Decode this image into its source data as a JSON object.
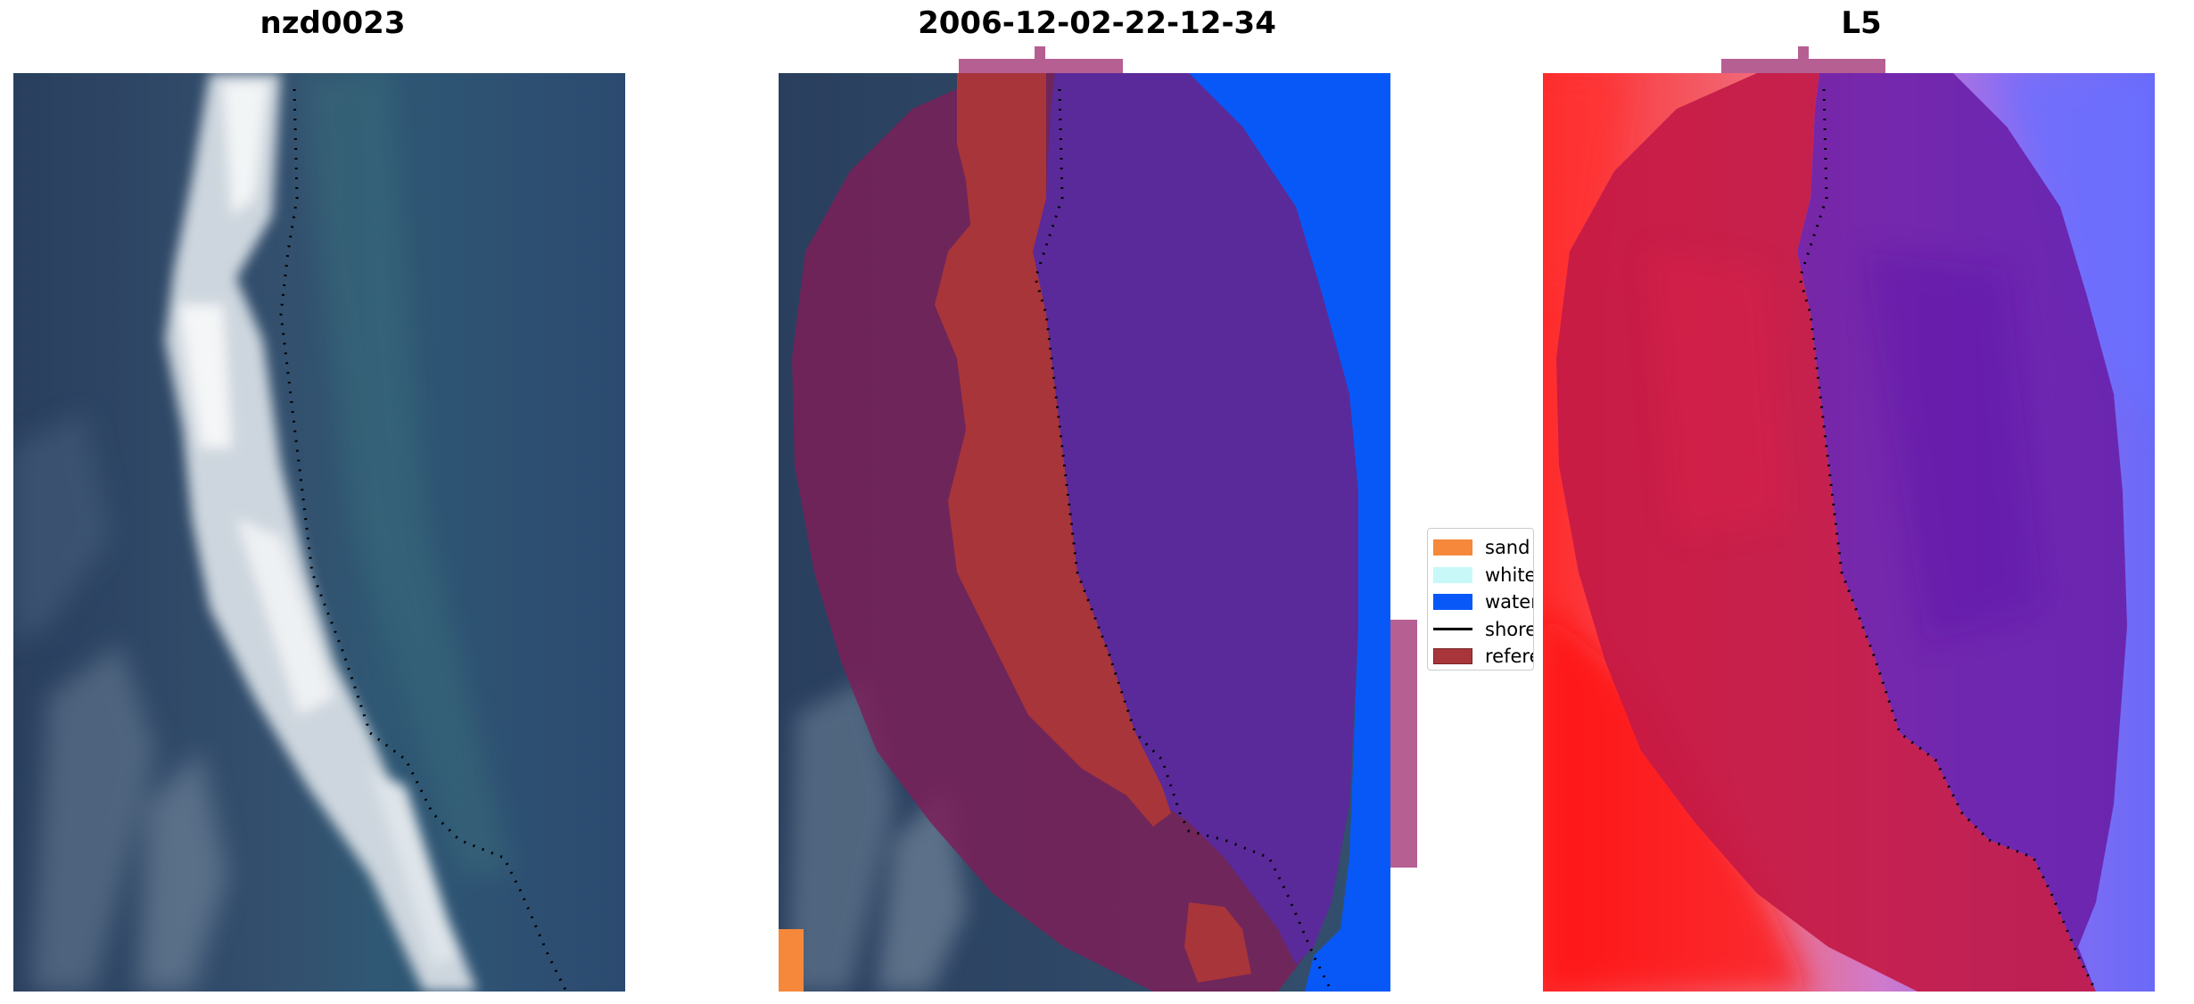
{
  "panels": {
    "left": {
      "title": "nzd0023"
    },
    "middle": {
      "title": "2006-12-02-22-12-34"
    },
    "right": {
      "title": "L5"
    }
  },
  "legend": {
    "items": [
      {
        "label": "sand",
        "color": "#f5883a"
      },
      {
        "label": "whitewater",
        "color": "#c8f8f8"
      },
      {
        "label": "water",
        "color": "#0858f8"
      },
      {
        "label": "shoreline",
        "color": "#000000"
      },
      {
        "label": "reference",
        "color": "#a8353a"
      }
    ]
  },
  "colors": {
    "imagery_water": "#2f4a6c",
    "imagery_surf": "#e6ecef",
    "overlay_purple": "#5a2a9a",
    "overlay_mask": "#7a2058",
    "overlay_pink": "#b65f93",
    "prob_red": "#d91c3b",
    "prob_blue": "#6a2ab0"
  }
}
